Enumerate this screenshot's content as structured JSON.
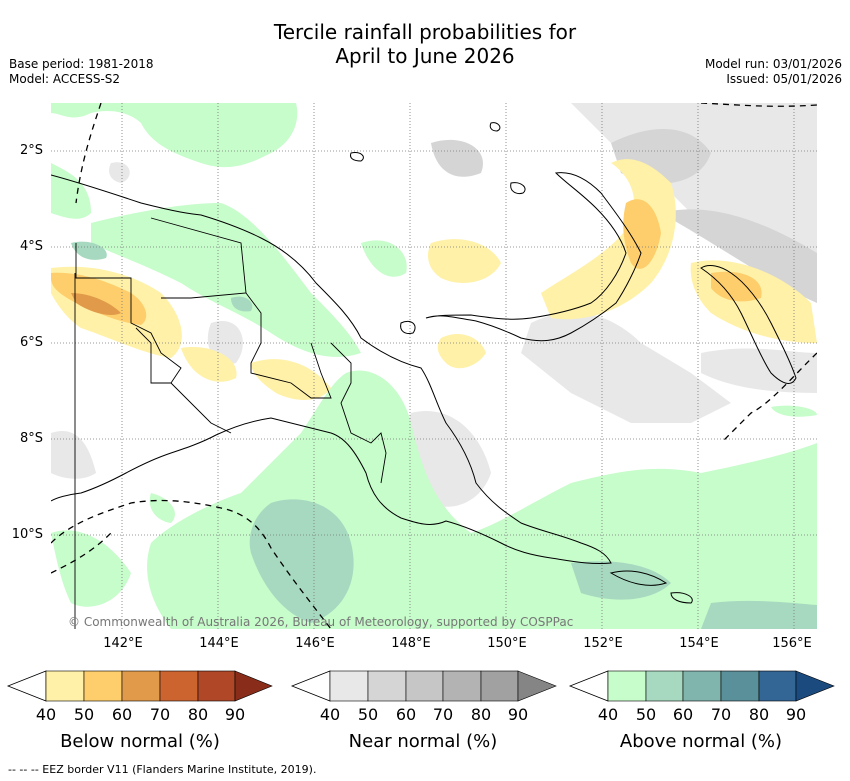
{
  "header": {
    "title_line1": "Tercile rainfall probabilities for",
    "title_line2": "April to June 2026",
    "base_period": "Base period: 1981-2018",
    "model": "Model: ACCESS-S2",
    "model_run": "Model run: 03/01/2026",
    "issued": "Issued: 05/01/2026"
  },
  "map": {
    "lat_labels": [
      "2°S",
      "4°S",
      "6°S",
      "8°S",
      "10°S"
    ],
    "lon_labels": [
      "142°E",
      "144°E",
      "146°E",
      "148°E",
      "150°E",
      "152°E",
      "154°E",
      "156°E"
    ],
    "credit": "© Commonwealth of Australia 2026, Bureau of Meteorology, supported by COSPPac"
  },
  "legend": {
    "ticks": [
      "40",
      "50",
      "60",
      "70",
      "80",
      "90"
    ],
    "below": {
      "label": "Below normal (%)",
      "colors": [
        "#fff1a8",
        "#fdce6b",
        "#e09a4a",
        "#cc6430",
        "#b04828",
        "#8a2c1a"
      ]
    },
    "near": {
      "label": "Near normal (%)",
      "colors": [
        "#e8e8e8",
        "#d5d5d5",
        "#c6c6c6",
        "#b3b3b3",
        "#a1a1a1",
        "#858585"
      ]
    },
    "above": {
      "label": "Above normal (%)",
      "colors": [
        "#c7fccb",
        "#a6d9bf",
        "#80b5ad",
        "#5a9099",
        "#336595",
        "#1b4a7e"
      ]
    }
  },
  "footnote": "--  --  -- EEZ border V11 (Flanders Marine Institute, 2019)."
}
